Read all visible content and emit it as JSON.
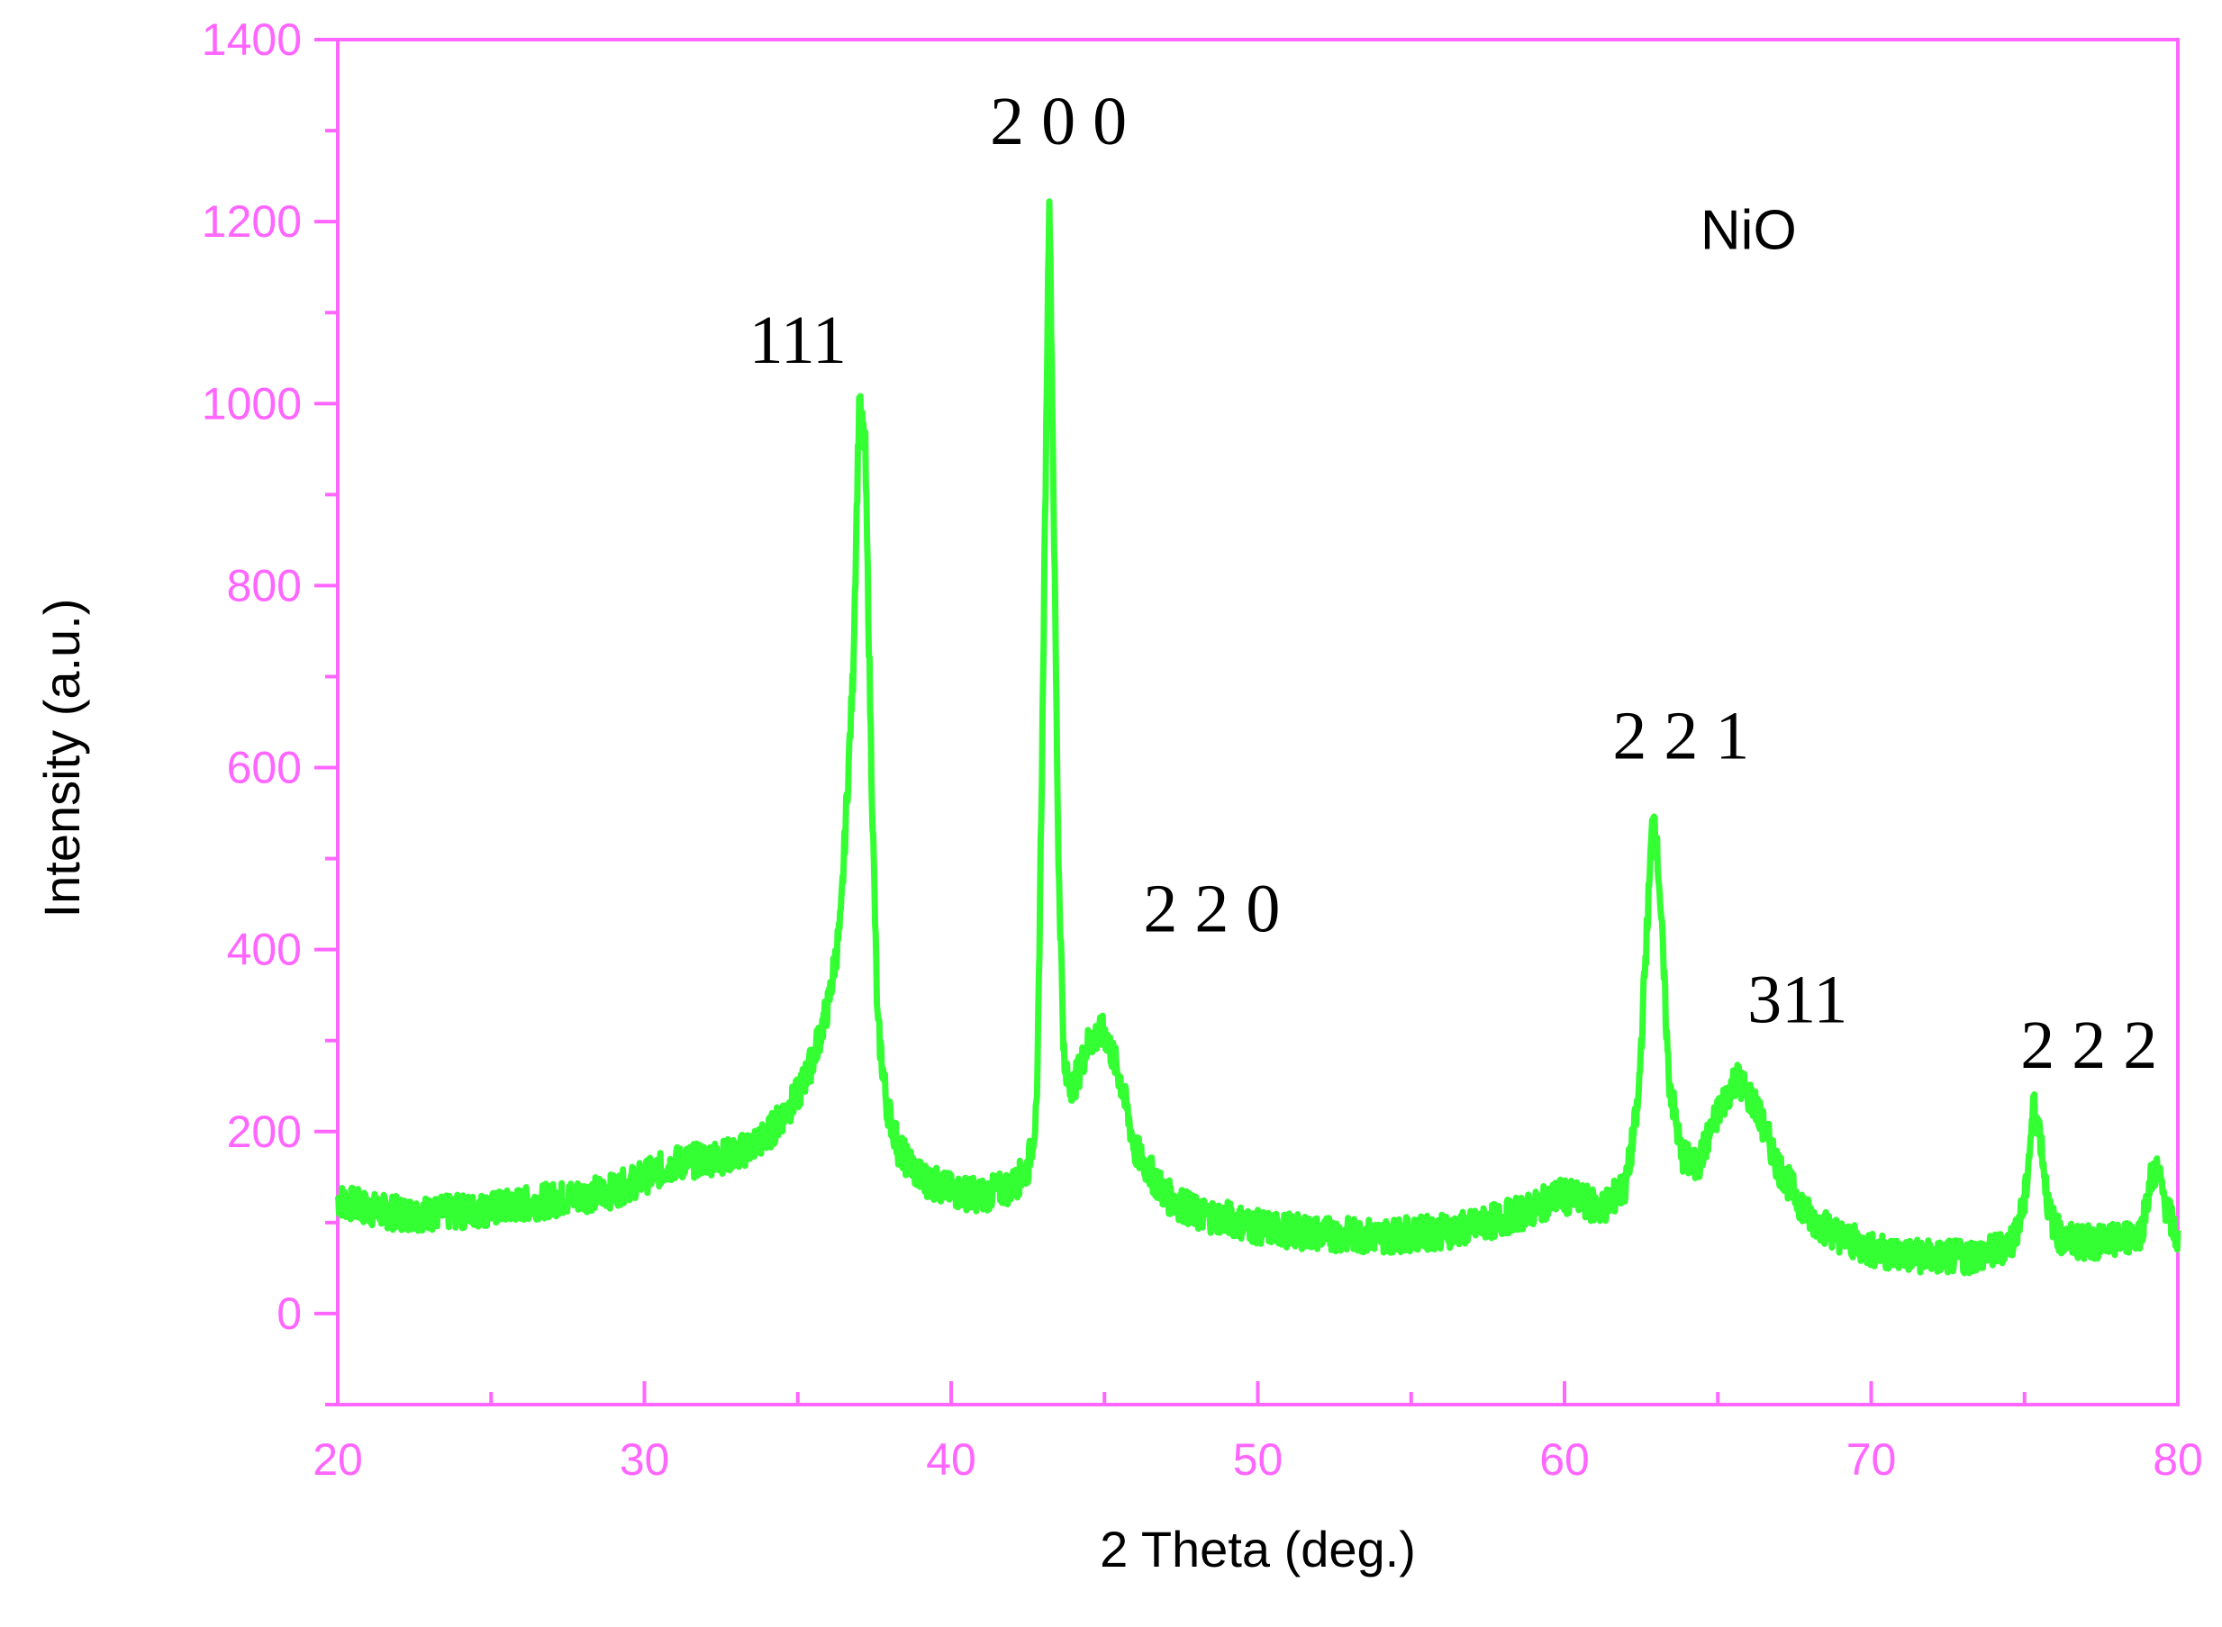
{
  "colors": {
    "axis": "#ff66ff",
    "series": "#33ff33",
    "text": "#000000",
    "background": "#ffffff"
  },
  "chart_data": {
    "type": "line",
    "title": "",
    "xlabel": "2 Theta (deg.)",
    "ylabel": "Intensity (a.u.)",
    "xlim": [
      20,
      80
    ],
    "ylim": [
      -100,
      1400
    ],
    "xticks": [
      20,
      30,
      40,
      50,
      60,
      70,
      80
    ],
    "yticks": [
      0,
      200,
      400,
      600,
      800,
      1000,
      1200,
      1400
    ],
    "grid": false,
    "legend": "none",
    "annotations": [
      {
        "text": "NiO",
        "x": 66.0,
        "y": 1170,
        "style": "sample"
      },
      {
        "text": "111",
        "x": 35.0,
        "y": 1045,
        "style": "peak"
      },
      {
        "text": "2 0 0",
        "x": 43.5,
        "y": 1285,
        "style": "peak"
      },
      {
        "text": "2 2 0",
        "x": 48.5,
        "y": 420,
        "style": "peak"
      },
      {
        "text": "2 2 1",
        "x": 63.8,
        "y": 610,
        "style": "peak"
      },
      {
        "text": "311",
        "x": 67.6,
        "y": 320,
        "style": "peak"
      },
      {
        "text": "2 2 2",
        "x": 77.1,
        "y": 270,
        "style": "peak"
      }
    ],
    "series": [
      {
        "color": "#33ff33",
        "x": [
          20,
          21,
          22,
          23,
          24,
          25,
          26,
          27,
          28,
          29,
          30,
          31,
          32,
          33,
          34,
          35,
          35.5,
          36,
          36.4,
          36.8,
          37.0,
          37.2,
          37.4,
          37.6,
          37.9,
          38.3,
          39,
          40,
          41,
          42,
          42.5,
          42.8,
          43.0,
          43.2,
          43.3,
          43.5,
          43.7,
          44.0,
          44.5,
          45.0,
          45.5,
          46,
          47,
          48,
          49,
          50,
          52,
          54,
          56,
          57,
          58,
          59,
          59.8,
          60.5,
          61.2,
          62,
          62.4,
          62.7,
          62.9,
          63.1,
          63.4,
          63.8,
          64.3,
          65.0,
          65.6,
          66.2,
          67,
          68,
          69,
          70,
          71,
          72,
          73,
          74,
          74.6,
          75.0,
          75.3,
          75.5,
          75.8,
          76.2,
          77,
          78,
          78.8,
          79.1,
          79.3,
          79.6,
          80
        ],
        "y": [
          125,
          115,
          110,
          110,
          112,
          115,
          120,
          125,
          130,
          135,
          150,
          165,
          170,
          175,
          195,
          240,
          280,
          340,
          430,
          700,
          1000,
          950,
          600,
          320,
          230,
          180,
          150,
          135,
          130,
          140,
          160,
          220,
          700,
          1240,
          1000,
          500,
          260,
          250,
          300,
          310,
          260,
          180,
          130,
          110,
          105,
          95,
          88,
          85,
          90,
          95,
          105,
          115,
          130,
          125,
          115,
          140,
          230,
          430,
          560,
          470,
          260,
          175,
          160,
          220,
          260,
          230,
          160,
          105,
          85,
          70,
          65,
          62,
          62,
          68,
          80,
          120,
          230,
          200,
          110,
          82,
          78,
          80,
          90,
          145,
          160,
          120,
          80
        ]
      }
    ]
  }
}
